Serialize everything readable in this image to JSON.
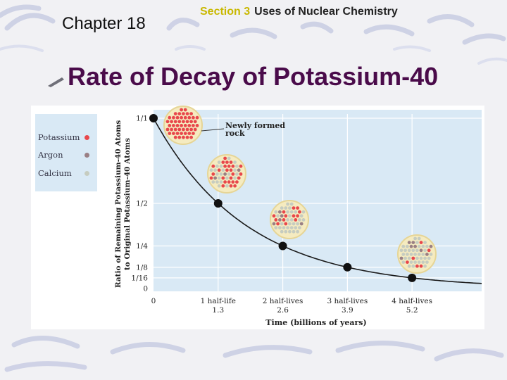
{
  "header": {
    "chapter": "Chapter 18",
    "section_number": "Section 3",
    "section_title": "Uses of Nuclear Chemistry"
  },
  "slide_title": "Rate of Decay of Potassium-40",
  "legend": [
    {
      "label": "Potassium",
      "color": "#e8474b"
    },
    {
      "label": "Argon",
      "color": "#9a7f84"
    },
    {
      "label": "Calcium",
      "color": "#c6ccc0"
    }
  ],
  "annotation": {
    "line1": "Newly formed",
    "line2": "rock"
  },
  "colors": {
    "plot_bg": "#d9e9f5",
    "title": "#4a0b4a",
    "circle_fill": "#f5ebc0",
    "circle_edge": "#e6d596"
  },
  "chart_data": {
    "type": "line",
    "title": "Rate of Decay of Potassium-40",
    "xlabel": "Time (billions of years)",
    "ylabel_line1": "Ratio of Remaining Potassium-40 Atoms",
    "ylabel_line2": "to Original Potassium-40 Atoms",
    "x": [
      0,
      1.3,
      2.6,
      3.9,
      5.2
    ],
    "y": [
      1,
      0.5,
      0.25,
      0.125,
      0.0625
    ],
    "xlim": [
      0,
      6.6
    ],
    "ylim": [
      0,
      1
    ],
    "x_ticks": [
      {
        "value": 0,
        "label": "0",
        "sublabel": ""
      },
      {
        "value": 1.3,
        "label": "1 half-life",
        "sublabel": "1.3"
      },
      {
        "value": 2.6,
        "label": "2 half-lives",
        "sublabel": "2.6"
      },
      {
        "value": 3.9,
        "label": "3 half-lives",
        "sublabel": "3.9"
      },
      {
        "value": 5.2,
        "label": "4 half-lives",
        "sublabel": "5.2"
      }
    ],
    "y_ticks": [
      {
        "value": 1,
        "label": "1/1"
      },
      {
        "value": 0.5,
        "label": "1/2"
      },
      {
        "value": 0.25,
        "label": "1/4"
      },
      {
        "value": 0.125,
        "label": "1/8"
      },
      {
        "value": 0.0625,
        "label": "1/16"
      },
      {
        "value": 0,
        "label": "0"
      }
    ],
    "grid": true,
    "legend_position": "top-left",
    "samples": [
      {
        "x": 0,
        "potassium_fraction": 1
      },
      {
        "x": 1.3,
        "potassium_fraction": 0.5
      },
      {
        "x": 2.6,
        "potassium_fraction": 0.25
      },
      {
        "x": 3.9,
        "potassium_fraction": 0.125
      }
    ]
  }
}
